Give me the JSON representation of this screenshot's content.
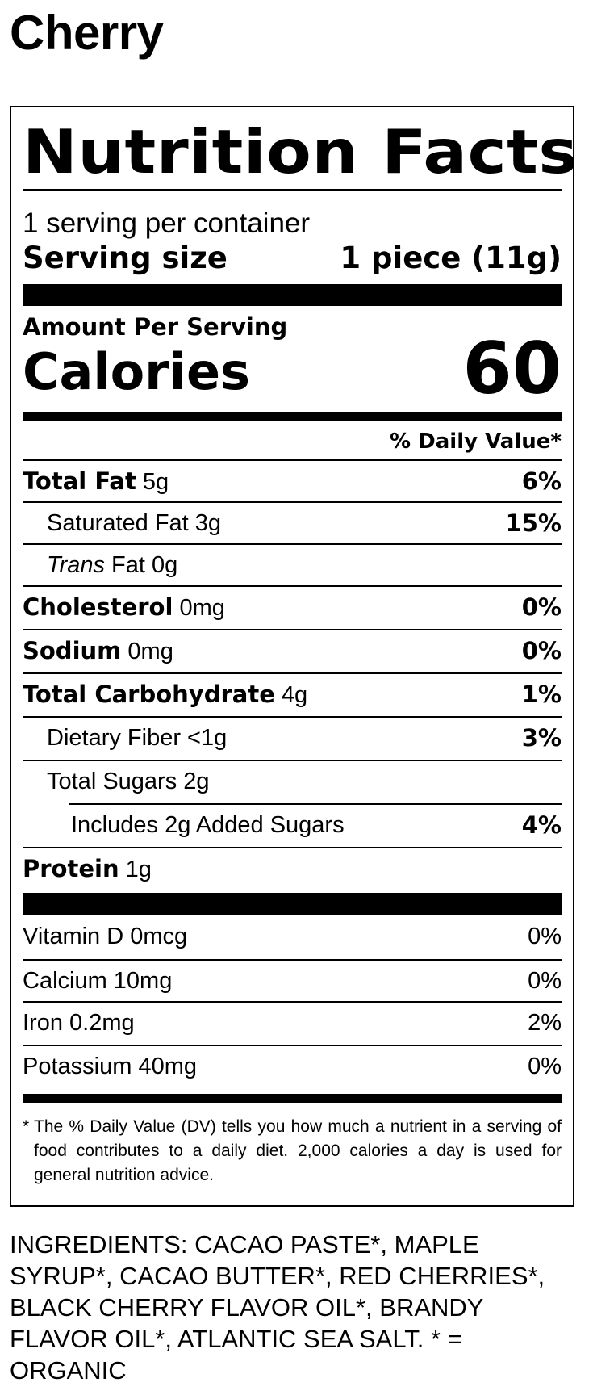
{
  "product_title": "Cherry",
  "label": {
    "heading": "Nutrition Facts",
    "servings_per_container": "1 serving per container",
    "serving_size_label": "Serving size",
    "serving_size_value": "1 piece (11g)",
    "amount_per_serving": "Amount Per Serving",
    "calories_label": "Calories",
    "calories_value": "60",
    "daily_value_header": "% Daily Value*",
    "nutrients": [
      {
        "bold": "Total Fat",
        "amount": " 5g",
        "dv": "6%"
      },
      {
        "plain": "Saturated Fat 3g",
        "dv": "15%"
      },
      {
        "italic": "Trans",
        "plain": " Fat 0g",
        "dv": ""
      },
      {
        "bold": "Cholesterol",
        "amount": " 0mg",
        "dv": "0%"
      },
      {
        "bold": "Sodium",
        "amount": " 0mg",
        "dv": "0%"
      },
      {
        "bold": "Total Carbohydrate",
        "amount": " 4g",
        "dv": "1%"
      },
      {
        "plain": "Dietary Fiber <1g",
        "dv": "3%"
      },
      {
        "plain": "Total Sugars 2g",
        "dv": ""
      },
      {
        "plain": "Includes 2g Added Sugars",
        "dv": "4%"
      },
      {
        "bold": "Protein",
        "amount": " 1g",
        "dv": ""
      }
    ],
    "vitamins": [
      {
        "name": "Vitamin D 0mcg",
        "dv": "0%"
      },
      {
        "name": "Calcium 10mg",
        "dv": "0%"
      },
      {
        "name": "Iron 0.2mg",
        "dv": "2%"
      },
      {
        "name": "Potassium 40mg",
        "dv": "0%"
      }
    ],
    "footnote_marker": "*",
    "footnote": "The % Daily Value (DV) tells you how much a nutrient in a serving of food contributes to a daily diet. 2,000 calories a day is used for general nutrition advice."
  },
  "ingredients": "INGREDIENTS: CACAO PASTE*, MAPLE SYRUP*, CACAO BUTTER*, RED CHERRIES*, BLACK CHERRY FLAVOR OIL*, BRANDY FLAVOR OIL*, ATLANTIC SEA SALT. * = ORGANIC"
}
